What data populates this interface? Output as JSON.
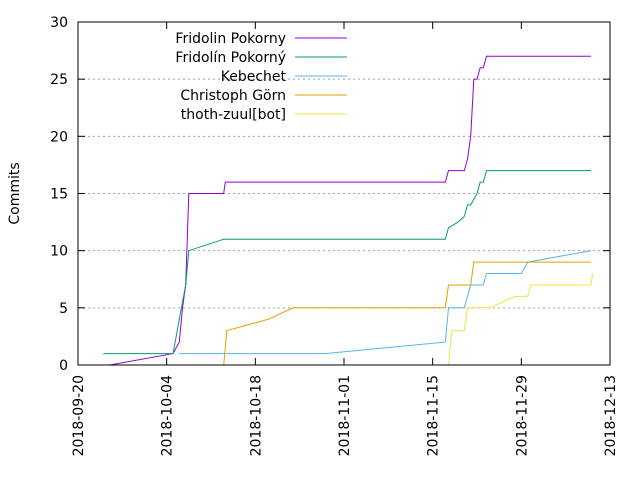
{
  "chart_data": {
    "type": "line",
    "title": "",
    "xlabel": "",
    "ylabel": "Commits",
    "xlim": [
      "2018-09-20",
      "2018-12-13"
    ],
    "ylim": [
      0,
      30
    ],
    "x_ticks": [
      "2018-09-20",
      "2018-10-04",
      "2018-10-18",
      "2018-11-01",
      "2018-11-15",
      "2018-11-29",
      "2018-12-13"
    ],
    "y_ticks": [
      0,
      5,
      10,
      15,
      20,
      25,
      30
    ],
    "grid": "horizontal dotted",
    "legend_position": "top-left",
    "series": [
      {
        "name": "Fridolin Pokorny",
        "color": "#9400d3",
        "points": [
          [
            "2018-09-25",
            0
          ],
          [
            "2018-10-05",
            1
          ],
          [
            "2018-10-06",
            2
          ],
          [
            "2018-10-06T12:00",
            5
          ],
          [
            "2018-10-07",
            7
          ],
          [
            "2018-10-07T12:00",
            15
          ],
          [
            "2018-10-13",
            15
          ],
          [
            "2018-10-13T06:00",
            16
          ],
          [
            "2018-11-17",
            16
          ],
          [
            "2018-11-17T12:00",
            17
          ],
          [
            "2018-11-20",
            17
          ],
          [
            "2018-11-20T12:00",
            18
          ],
          [
            "2018-11-21",
            20
          ],
          [
            "2018-11-21T12:00",
            25
          ],
          [
            "2018-11-22",
            25
          ],
          [
            "2018-11-22T12:00",
            26
          ],
          [
            "2018-11-23",
            26
          ],
          [
            "2018-11-23T12:00",
            27
          ],
          [
            "2018-12-10",
            27
          ]
        ]
      },
      {
        "name": "Fridolín Pokorný",
        "color": "#009e73",
        "points": [
          [
            "2018-09-24",
            1
          ],
          [
            "2018-10-05",
            1
          ],
          [
            "2018-10-06",
            4
          ],
          [
            "2018-10-07",
            7
          ],
          [
            "2018-10-07T12:00",
            10
          ],
          [
            "2018-10-13",
            11
          ],
          [
            "2018-11-17",
            11
          ],
          [
            "2018-11-17T12:00",
            12
          ],
          [
            "2018-11-19",
            12.5
          ],
          [
            "2018-11-20",
            13
          ],
          [
            "2018-11-20T12:00",
            14
          ],
          [
            "2018-11-21",
            14
          ],
          [
            "2018-11-22",
            15
          ],
          [
            "2018-11-22T12:00",
            16
          ],
          [
            "2018-11-23",
            16
          ],
          [
            "2018-11-23T12:00",
            17
          ],
          [
            "2018-12-10",
            17
          ]
        ]
      },
      {
        "name": "Kebechet",
        "color": "#56b4e9",
        "points": [
          [
            "2018-10-06",
            1
          ],
          [
            "2018-10-29",
            1
          ],
          [
            "2018-11-17",
            2
          ],
          [
            "2018-11-17T12:00",
            5
          ],
          [
            "2018-11-20",
            5
          ],
          [
            "2018-11-20T12:00",
            6
          ],
          [
            "2018-11-21",
            7
          ],
          [
            "2018-11-23",
            7
          ],
          [
            "2018-11-23T12:00",
            8
          ],
          [
            "2018-11-29",
            8
          ],
          [
            "2018-11-30",
            9
          ],
          [
            "2018-12-10",
            10
          ]
        ]
      },
      {
        "name": "Christoph Görn",
        "color": "#e69f00",
        "points": [
          [
            "2018-10-13",
            0
          ],
          [
            "2018-10-13T12:00",
            3
          ],
          [
            "2018-10-20",
            4
          ],
          [
            "2018-10-24",
            5
          ],
          [
            "2018-11-17",
            5
          ],
          [
            "2018-11-17T06:00",
            6
          ],
          [
            "2018-11-17T12:00",
            7
          ],
          [
            "2018-11-21",
            7
          ],
          [
            "2018-11-21T12:00",
            9
          ],
          [
            "2018-12-10",
            9
          ]
        ]
      },
      {
        "name": "thoth-zuul[bot]",
        "color": "#f0e442",
        "points": [
          [
            "2018-11-17T12:00",
            0
          ],
          [
            "2018-11-18",
            3
          ],
          [
            "2018-11-20",
            3
          ],
          [
            "2018-11-20T12:00",
            5
          ],
          [
            "2018-11-24",
            5
          ],
          [
            "2018-11-28",
            6
          ],
          [
            "2018-11-30",
            6
          ],
          [
            "2018-11-30T12:00",
            7
          ],
          [
            "2018-12-10",
            7
          ],
          [
            "2018-12-10T06:00",
            8
          ]
        ]
      }
    ]
  }
}
